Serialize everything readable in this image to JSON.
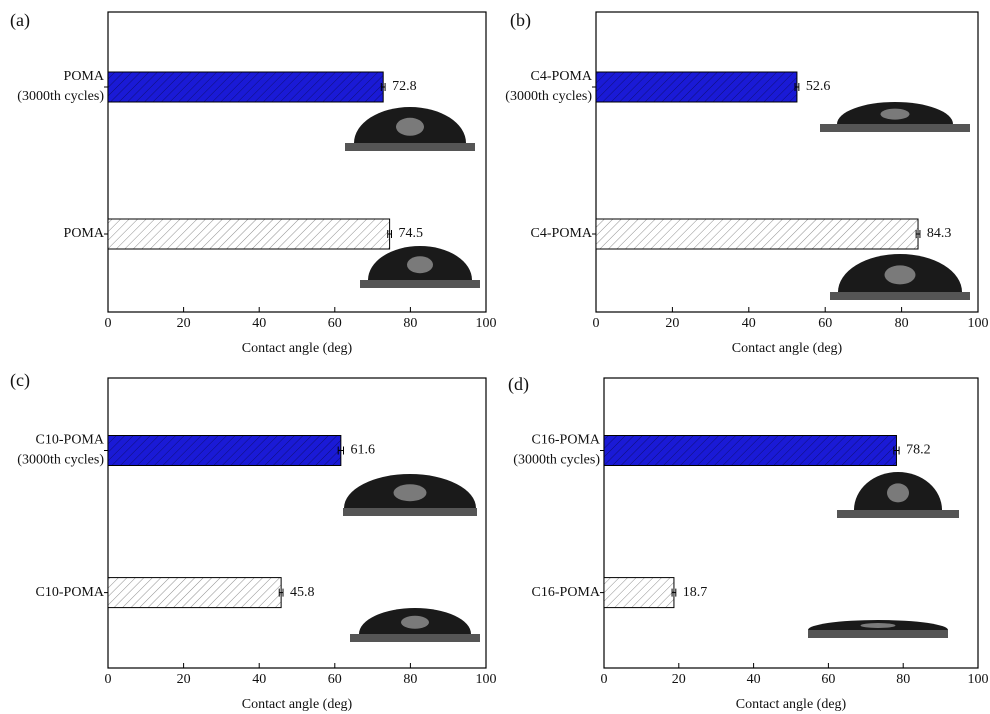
{
  "chart_data": [
    {
      "type": "bar",
      "panel_label": "(a)",
      "xlabel": "Contact angle (deg)",
      "categories": [
        [
          "POMA",
          "(3000th cycles)"
        ],
        [
          "POMA"
        ]
      ],
      "values": [
        72.8,
        74.5
      ],
      "errors": [
        0.5,
        0.5
      ],
      "colors": [
        "#1a1ad6",
        "#ffffff"
      ],
      "xlim": [
        0,
        100
      ],
      "xticks": [
        0,
        20,
        40,
        60,
        80,
        100
      ]
    },
    {
      "type": "bar",
      "panel_label": "(b)",
      "xlabel": "Contact angle (deg)",
      "categories": [
        [
          "C4-POMA",
          "(3000th cycles)"
        ],
        [
          "C4-POMA"
        ]
      ],
      "values": [
        52.6,
        84.3
      ],
      "errors": [
        0.5,
        0.5
      ],
      "colors": [
        "#1a1ad6",
        "#ffffff"
      ],
      "xlim": [
        0,
        100
      ],
      "xticks": [
        0,
        20,
        40,
        60,
        80,
        100
      ]
    },
    {
      "type": "bar",
      "panel_label": "(c)",
      "xlabel": "Contact angle (deg)",
      "categories": [
        [
          "C10-POMA",
          "(3000th cycles)"
        ],
        [
          "C10-POMA"
        ]
      ],
      "values": [
        61.6,
        45.8
      ],
      "errors": [
        0.7,
        0.5
      ],
      "colors": [
        "#1a1ad6",
        "#ffffff"
      ],
      "xlim": [
        0,
        100
      ],
      "xticks": [
        0,
        20,
        40,
        60,
        80,
        100
      ]
    },
    {
      "type": "bar",
      "panel_label": "(d)",
      "xlabel": "Contact angle (deg)",
      "categories": [
        [
          "C16-POMA",
          "(3000th cycles)"
        ],
        [
          "C16-POMA"
        ]
      ],
      "values": [
        78.2,
        18.7
      ],
      "errors": [
        0.7,
        0.5
      ],
      "colors": [
        "#1a1ad6",
        "#ffffff"
      ],
      "xlim": [
        0,
        100
      ],
      "xticks": [
        0,
        20,
        40,
        60,
        80,
        100
      ]
    }
  ]
}
